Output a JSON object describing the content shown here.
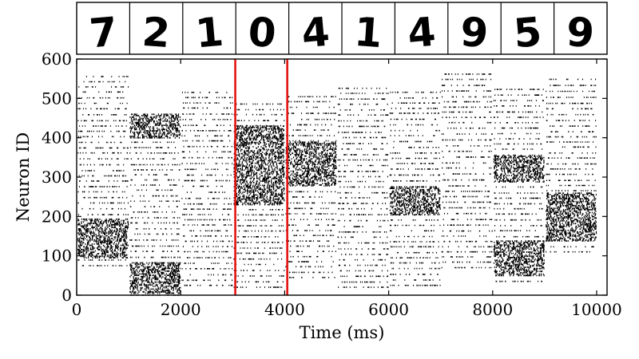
{
  "chart_data": {
    "type": "scatter",
    "subtype": "spike-raster",
    "title": "",
    "xlabel": "Time (ms)",
    "ylabel": "Neuron ID",
    "xlim": [
      0,
      10200
    ],
    "ylim": [
      0,
      600
    ],
    "x_ticks": [
      0,
      2000,
      4000,
      6000,
      8000,
      10000
    ],
    "y_ticks": [
      0,
      100,
      200,
      300,
      400,
      500,
      600
    ],
    "grid": false,
    "legend": "none",
    "spike_color": "#000000",
    "highlight_color": "#e3130f",
    "highlight_lines_x": [
      3050,
      4050
    ],
    "input_digits": [
      "7",
      "2",
      "1",
      "0",
      "4",
      "1",
      "4",
      "9",
      "5",
      "9"
    ],
    "trials": [
      {
        "digit": "7",
        "t_start": 0,
        "t_end": 1000,
        "dense_bands": [
          [
            95,
            195
          ]
        ],
        "active_range": [
          75,
          565
        ]
      },
      {
        "digit": "2",
        "t_start": 1000,
        "t_end": 2000,
        "dense_bands": [
          [
            5,
            85
          ],
          [
            400,
            460
          ]
        ],
        "active_range": [
          0,
          470
        ]
      },
      {
        "digit": "1",
        "t_start": 2000,
        "t_end": 3000,
        "dense_bands": [],
        "active_range": [
          25,
          520
        ]
      },
      {
        "digit": "0",
        "t_start": 3000,
        "t_end": 4000,
        "dense_bands": [
          [
            230,
            430
          ]
        ],
        "active_range": [
          20,
          490
        ]
      },
      {
        "digit": "4",
        "t_start": 4000,
        "t_end": 5000,
        "dense_bands": [
          [
            280,
            390
          ]
        ],
        "active_range": [
          45,
          510
        ]
      },
      {
        "digit": "1",
        "t_start": 5000,
        "t_end": 6000,
        "dense_bands": [],
        "active_range": [
          20,
          530
        ]
      },
      {
        "digit": "4",
        "t_start": 6000,
        "t_end": 7000,
        "dense_bands": [
          [
            205,
            275
          ]
        ],
        "active_range": [
          25,
          525
        ]
      },
      {
        "digit": "9",
        "t_start": 7000,
        "t_end": 8000,
        "dense_bands": [],
        "active_range": [
          70,
          570
        ]
      },
      {
        "digit": "5",
        "t_start": 8000,
        "t_end": 9000,
        "dense_bands": [
          [
            50,
            140
          ],
          [
            290,
            355
          ]
        ],
        "active_range": [
          35,
          530
        ]
      },
      {
        "digit": "9",
        "t_start": 9000,
        "t_end": 10000,
        "dense_bands": [
          [
            140,
            260
          ]
        ],
        "active_range": [
          110,
          560
        ]
      }
    ]
  }
}
